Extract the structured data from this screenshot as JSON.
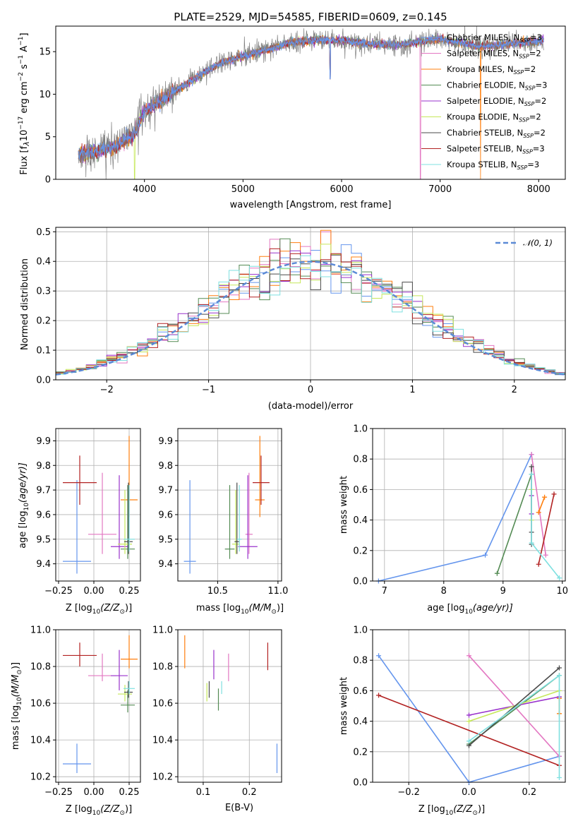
{
  "page": {
    "title": "PLATE=2529, MJD=54585, FIBERID=0609, z=0.145"
  },
  "models": [
    {
      "label": "Chabrier MILES, N_SSP=3",
      "base": "Chabrier MILES, N",
      "sub": "SSP",
      "tail": "=3",
      "color": "#6495ed",
      "weight": 0.8
    },
    {
      "label": "Salpeter MILES, N_SSP=2",
      "base": "Salpeter MILES, N",
      "sub": "SSP",
      "tail": "=2",
      "color": "#e377c2",
      "weight": 0.8
    },
    {
      "label": "Kroupa MILES, N_SSP=2",
      "base": "Kroupa MILES, N",
      "sub": "SSP",
      "tail": "=2",
      "color": "#ff7f0e",
      "weight": 0.8
    },
    {
      "label": "Chabrier ELODIE, N_SSP=3",
      "base": "Chabrier ELODIE, N",
      "sub": "SSP",
      "tail": "=3",
      "color": "#548b54",
      "weight": 0.8
    },
    {
      "label": "Salpeter ELODIE, N_SSP=2",
      "base": "Salpeter ELODIE, N",
      "sub": "SSP",
      "tail": "=2",
      "color": "#9932cc",
      "weight": 0.8
    },
    {
      "label": "Kroupa ELODIE, N_SSP=2",
      "base": "Kroupa ELODIE, N",
      "sub": "SSP",
      "tail": "=2",
      "color": "#c6e85a",
      "weight": 0.8
    },
    {
      "label": "Chabrier STELIB, N_SSP=2",
      "base": "Chabrier STELIB, N",
      "sub": "SSP",
      "tail": "=2",
      "color": "#4a4a4a",
      "weight": 0.8
    },
    {
      "label": "Salpeter STELIB, N_SSP=3",
      "base": "Salpeter STELIB, N",
      "sub": "SSP",
      "tail": "=3",
      "color": "#b22222",
      "weight": 0.8
    },
    {
      "label": "Kroupa STELIB, N_SSP=3",
      "base": "Kroupa STELIB, N",
      "sub": "SSP",
      "tail": "=3",
      "color": "#7fe0e0",
      "weight": 0.8
    }
  ],
  "chart_data": [
    {
      "id": "spectrum",
      "type": "line",
      "xlabel": "wavelength [Angstrom, rest frame]",
      "ylabel": "Flux [f_λ10^-17 erg cm^-2 s^-1 A^-1]",
      "xlim": [
        3100,
        8270
      ],
      "ylim": [
        0,
        18
      ],
      "xticks": [
        4000,
        5000,
        6000,
        7000,
        8000
      ],
      "yticks": [
        0,
        5,
        10,
        15
      ],
      "grid": false,
      "legend_position": "right",
      "data_range_x": [
        3330,
        8050
      ],
      "continuum_points": [
        [
          3330,
          3.0
        ],
        [
          3500,
          3.2
        ],
        [
          3700,
          3.8
        ],
        [
          3900,
          5.3
        ],
        [
          4000,
          8.0
        ],
        [
          4200,
          9.5
        ],
        [
          4400,
          11.0
        ],
        [
          4600,
          12.5
        ],
        [
          4800,
          13.8
        ],
        [
          5000,
          14.5
        ],
        [
          5200,
          15.1
        ],
        [
          5500,
          16.1
        ],
        [
          5800,
          16.4
        ],
        [
          6000,
          16.3
        ],
        [
          6300,
          15.9
        ],
        [
          6600,
          15.8
        ],
        [
          7000,
          16.5
        ],
        [
          7400,
          15.6
        ],
        [
          8050,
          16.3
        ]
      ],
      "features": [
        {
          "x": 6800,
          "depth_to": 0,
          "series": "Salpeter MILES"
        },
        {
          "x": 7410,
          "depth_to": 0,
          "series": "Kroupa MILES"
        },
        {
          "x": 3900,
          "depth_to": 0,
          "series": "Kroupa ELODIE"
        },
        {
          "x": 3610,
          "depth_to": 0,
          "series": "Chabrier STELIB"
        },
        {
          "x": 5885,
          "depth_to": 11.8,
          "series": "all"
        }
      ]
    },
    {
      "id": "residuals",
      "type": "histogram",
      "xlabel": "(data-model)/error",
      "ylabel": "Normed distribution",
      "xlim": [
        -2.5,
        2.5
      ],
      "ylim": [
        0,
        0.515
      ],
      "xticks": [
        -2,
        -1,
        0,
        1,
        2
      ],
      "yticks": [
        0.0,
        0.1,
        0.2,
        0.3,
        0.4,
        0.5
      ],
      "grid": true,
      "legend": [
        {
          "name": "𝒩(0, 1)",
          "color": "#6495ed",
          "style": "dashed"
        }
      ],
      "legend_position": "top-right",
      "bin_width": 0.1,
      "reference_curve": "gaussian(mu=0, sigma=1)"
    },
    {
      "id": "age-vs-Z",
      "type": "errorbar",
      "xlabel": "Z [log10(Z/Z⊙)]",
      "ylabel": "age [log10(age/yr)]",
      "xlim": [
        -0.27,
        0.33
      ],
      "ylim": [
        9.33,
        9.95
      ],
      "xticks": [
        -0.25,
        0.0,
        0.25
      ],
      "yticks": [
        9.4,
        9.5,
        9.6,
        9.7,
        9.8,
        9.9
      ],
      "grid": true,
      "points": [
        {
          "series": "Chabrier MILES",
          "x": -0.12,
          "y": 9.41,
          "xerr": [
            0.1,
            0.1
          ],
          "yerr": [
            0.05,
            0.33
          ]
        },
        {
          "series": "Salpeter MILES",
          "x": 0.06,
          "y": 9.52,
          "xerr": [
            0.1,
            0.1
          ],
          "yerr": [
            0.08,
            0.25
          ]
        },
        {
          "series": "Kroupa MILES",
          "x": 0.25,
          "y": 9.66,
          "xerr": [
            0.06,
            0.06
          ],
          "yerr": [
            0.07,
            0.26
          ]
        },
        {
          "series": "Chabrier ELODIE",
          "x": 0.24,
          "y": 9.46,
          "xerr": [
            0.05,
            0.05
          ],
          "yerr": [
            0.04,
            0.26
          ]
        },
        {
          "series": "Salpeter ELODIE",
          "x": 0.18,
          "y": 9.47,
          "xerr": [
            0.06,
            0.06
          ],
          "yerr": [
            0.05,
            0.29
          ]
        },
        {
          "series": "Kroupa ELODIE",
          "x": 0.22,
          "y": 9.48,
          "xerr": [
            0.05,
            0.05
          ],
          "yerr": [
            0.04,
            0.22
          ]
        },
        {
          "series": "Chabrier STELIB",
          "x": 0.245,
          "y": 9.49,
          "xerr": [
            0.03,
            0.03
          ],
          "yerr": [
            0.05,
            0.24
          ]
        },
        {
          "series": "Salpeter STELIB",
          "x": -0.1,
          "y": 9.73,
          "xerr": [
            0.12,
            0.12
          ],
          "yerr": [
            0.09,
            0.11
          ]
        },
        {
          "series": "Kroupa STELIB",
          "x": 0.25,
          "y": 9.5,
          "xerr": [
            0.04,
            0.04
          ],
          "yerr": [
            0.05,
            0.22
          ]
        }
      ]
    },
    {
      "id": "age-vs-mass",
      "type": "errorbar",
      "xlabel": "mass [log10(M/M⊙)]",
      "ylabel": "",
      "xlim": [
        10.17,
        11.03
      ],
      "ylim": [
        9.33,
        9.95
      ],
      "xticks": [
        10.5,
        11.0
      ],
      "yticks": [
        9.4,
        9.5,
        9.6,
        9.7,
        9.8,
        9.9
      ],
      "grid": true,
      "points": [
        {
          "series": "Chabrier MILES",
          "x": 10.27,
          "y": 9.41,
          "xerr": [
            0.05,
            0.05
          ],
          "yerr": [
            0.05,
            0.33
          ]
        },
        {
          "series": "Salpeter MILES",
          "x": 10.76,
          "y": 9.52,
          "xerr": [
            0.03,
            0.03
          ],
          "yerr": [
            0.08,
            0.25
          ]
        },
        {
          "series": "Kroupa MILES",
          "x": 10.85,
          "y": 9.66,
          "xerr": [
            0.04,
            0.04
          ],
          "yerr": [
            0.07,
            0.26
          ]
        },
        {
          "series": "Chabrier ELODIE",
          "x": 10.6,
          "y": 9.46,
          "xerr": [
            0.04,
            0.04
          ],
          "yerr": [
            0.04,
            0.26
          ]
        },
        {
          "series": "Salpeter ELODIE",
          "x": 10.75,
          "y": 9.47,
          "xerr": [
            0.08,
            0.08
          ],
          "yerr": [
            0.05,
            0.29
          ]
        },
        {
          "series": "Kroupa ELODIE",
          "x": 10.65,
          "y": 9.48,
          "xerr": [
            0.03,
            0.03
          ],
          "yerr": [
            0.04,
            0.22
          ]
        },
        {
          "series": "Chabrier STELIB",
          "x": 10.66,
          "y": 9.49,
          "xerr": [
            0.02,
            0.02
          ],
          "yerr": [
            0.05,
            0.24
          ]
        },
        {
          "series": "Salpeter STELIB",
          "x": 10.86,
          "y": 9.73,
          "xerr": [
            0.07,
            0.07
          ],
          "yerr": [
            0.09,
            0.11
          ]
        },
        {
          "series": "Kroupa STELIB",
          "x": 10.68,
          "y": 9.5,
          "xerr": [
            0.02,
            0.02
          ],
          "yerr": [
            0.05,
            0.22
          ]
        }
      ]
    },
    {
      "id": "weight-vs-age",
      "type": "line",
      "xlabel": "age [log10(age/yr)]",
      "ylabel": "mass weight",
      "xlim": [
        6.8,
        10.05
      ],
      "ylim": [
        0,
        1.0
      ],
      "xticks": [
        7,
        8,
        9,
        10
      ],
      "yticks": [
        0.0,
        0.2,
        0.4,
        0.6,
        0.8,
        1.0
      ],
      "grid": true,
      "series": [
        {
          "name": "Chabrier MILES",
          "x": [
            6.9,
            8.7,
            9.48
          ],
          "y": [
            0.0,
            0.17,
            0.83
          ]
        },
        {
          "name": "Salpeter MILES",
          "x": [
            9.48,
            9.72
          ],
          "y": [
            0.83,
            0.17
          ]
        },
        {
          "name": "Kroupa MILES",
          "x": [
            9.6,
            9.7
          ],
          "y": [
            0.45,
            0.55
          ]
        },
        {
          "name": "Chabrier ELODIE",
          "x": [
            8.9,
            9.48
          ],
          "y": [
            0.05,
            0.7
          ]
        },
        {
          "name": "Salpeter ELODIE",
          "x": [
            9.48,
            9.48
          ],
          "y": [
            0.44,
            0.56
          ]
        },
        {
          "name": "Kroupa ELODIE",
          "x": [
            9.48,
            9.48
          ],
          "y": [
            0.4,
            0.6
          ]
        },
        {
          "name": "Chabrier STELIB",
          "x": [
            9.48,
            9.48,
            9.48
          ],
          "y": [
            0.24,
            0.32,
            0.75
          ]
        },
        {
          "name": "Salpeter STELIB",
          "x": [
            9.6,
            9.86
          ],
          "y": [
            0.11,
            0.57
          ]
        },
        {
          "name": "Kroupa STELIB",
          "x": [
            9.48,
            9.48,
            9.95
          ],
          "y": [
            0.7,
            0.25,
            0.02
          ]
        }
      ]
    },
    {
      "id": "mass-vs-Z",
      "type": "errorbar",
      "xlabel": "Z [log10(Z/Z⊙)]",
      "ylabel": "mass [log10(M/M⊙)]",
      "xlim": [
        -0.27,
        0.33
      ],
      "ylim": [
        10.17,
        11.0
      ],
      "xticks": [
        -0.25,
        0.0,
        0.25
      ],
      "yticks": [
        10.2,
        10.4,
        10.6,
        10.8,
        11.0
      ],
      "grid": true,
      "points": [
        {
          "series": "Chabrier MILES",
          "x": -0.12,
          "y": 10.27,
          "xerr": [
            0.1,
            0.1
          ],
          "yerr": [
            0.05,
            0.11
          ]
        },
        {
          "series": "Salpeter MILES",
          "x": 0.06,
          "y": 10.75,
          "xerr": [
            0.1,
            0.1
          ],
          "yerr": [
            0.03,
            0.12
          ]
        },
        {
          "series": "Kroupa MILES",
          "x": 0.25,
          "y": 10.84,
          "xerr": [
            0.06,
            0.06
          ],
          "yerr": [
            0.05,
            0.13
          ]
        },
        {
          "series": "Chabrier ELODIE",
          "x": 0.24,
          "y": 10.59,
          "xerr": [
            0.05,
            0.05
          ],
          "yerr": [
            0.04,
            0.08
          ]
        },
        {
          "series": "Salpeter ELODIE",
          "x": 0.18,
          "y": 10.75,
          "xerr": [
            0.06,
            0.06
          ],
          "yerr": [
            0.08,
            0.14
          ]
        },
        {
          "series": "Kroupa ELODIE",
          "x": 0.22,
          "y": 10.65,
          "xerr": [
            0.05,
            0.05
          ],
          "yerr": [
            0.04,
            0.05
          ]
        },
        {
          "series": "Chabrier STELIB",
          "x": 0.245,
          "y": 10.66,
          "xerr": [
            0.03,
            0.03
          ],
          "yerr": [
            0.03,
            0.06
          ]
        },
        {
          "series": "Salpeter STELIB",
          "x": -0.1,
          "y": 10.86,
          "xerr": [
            0.12,
            0.12
          ],
          "yerr": [
            0.06,
            0.07
          ]
        },
        {
          "series": "Kroupa STELIB",
          "x": 0.25,
          "y": 10.68,
          "xerr": [
            0.04,
            0.04
          ],
          "yerr": [
            0.03,
            0.04
          ]
        }
      ]
    },
    {
      "id": "mass-vs-ebv",
      "type": "errorbar",
      "xlabel": "E(B-V)",
      "ylabel": "",
      "xlim": [
        0.045,
        0.27
      ],
      "ylim": [
        10.17,
        11.0
      ],
      "xticks": [
        0.1,
        0.2
      ],
      "yticks": [
        10.2,
        10.4,
        10.6,
        10.8,
        11.0
      ],
      "grid": true,
      "points": [
        {
          "series": "Chabrier MILES",
          "x": 0.26,
          "y": 10.27,
          "xerr": [
            0,
            0
          ],
          "yerr": [
            0.05,
            0.11
          ]
        },
        {
          "series": "Salpeter MILES",
          "x": 0.155,
          "y": 10.77,
          "xerr": [
            0,
            0
          ],
          "yerr": [
            0.05,
            0.1
          ]
        },
        {
          "series": "Kroupa MILES",
          "x": 0.06,
          "y": 10.85,
          "xerr": [
            0,
            0
          ],
          "yerr": [
            0.06,
            0.12
          ]
        },
        {
          "series": "Chabrier ELODIE",
          "x": 0.133,
          "y": 10.6,
          "xerr": [
            0,
            0
          ],
          "yerr": [
            0.04,
            0.08
          ]
        },
        {
          "series": "Salpeter ELODIE",
          "x": 0.123,
          "y": 10.8,
          "xerr": [
            0,
            0
          ],
          "yerr": [
            0.07,
            0.09
          ]
        },
        {
          "series": "Kroupa ELODIE",
          "x": 0.108,
          "y": 10.65,
          "xerr": [
            0,
            0
          ],
          "yerr": [
            0.04,
            0.06
          ]
        },
        {
          "series": "Chabrier STELIB",
          "x": 0.113,
          "y": 10.66,
          "xerr": [
            0,
            0
          ],
          "yerr": [
            0.03,
            0.06
          ]
        },
        {
          "series": "Salpeter STELIB",
          "x": 0.24,
          "y": 10.85,
          "xerr": [
            0,
            0
          ],
          "yerr": [
            0.07,
            0.08
          ]
        },
        {
          "series": "Kroupa STELIB",
          "x": 0.14,
          "y": 10.68,
          "xerr": [
            0,
            0
          ],
          "yerr": [
            0.03,
            0.04
          ]
        }
      ]
    },
    {
      "id": "weight-vs-Z",
      "type": "line",
      "xlabel": "Z [log10(Z/Z⊙)]",
      "ylabel": "mass weight",
      "xlim": [
        -0.32,
        0.32
      ],
      "ylim": [
        0,
        1.0
      ],
      "xticks": [
        -0.2,
        0.0,
        0.2
      ],
      "yticks": [
        0.0,
        0.2,
        0.4,
        0.6,
        0.8,
        1.0
      ],
      "grid": true,
      "series": [
        {
          "name": "Chabrier MILES",
          "x": [
            -0.3,
            0.0,
            0.3
          ],
          "y": [
            0.83,
            0.0,
            0.17
          ]
        },
        {
          "name": "Salpeter MILES",
          "x": [
            0.0,
            0.3
          ],
          "y": [
            0.83,
            0.17
          ]
        },
        {
          "name": "Kroupa MILES",
          "x": [
            0.3,
            0.3
          ],
          "y": [
            0.45,
            0.55
          ]
        },
        {
          "name": "Chabrier ELODIE",
          "x": [
            0.0,
            0.3
          ],
          "y": [
            0.25,
            0.7
          ]
        },
        {
          "name": "Salpeter ELODIE",
          "x": [
            0.0,
            0.3
          ],
          "y": [
            0.44,
            0.56
          ]
        },
        {
          "name": "Kroupa ELODIE",
          "x": [
            0.0,
            0.3
          ],
          "y": [
            0.4,
            0.6
          ]
        },
        {
          "name": "Chabrier STELIB",
          "x": [
            0.0,
            0.3
          ],
          "y": [
            0.24,
            0.75
          ]
        },
        {
          "name": "Salpeter STELIB",
          "x": [
            -0.3,
            0.3
          ],
          "y": [
            0.57,
            0.11
          ]
        },
        {
          "name": "Kroupa STELIB",
          "x": [
            0.0,
            0.3,
            0.3
          ],
          "y": [
            0.27,
            0.7,
            0.03
          ]
        }
      ]
    }
  ],
  "labels": {
    "spectrum_xlabel": "wavelength [Angstrom, rest frame]",
    "residual_xlabel": "(data-model)/error",
    "residual_ylabel": "Normed distribution",
    "normal_legend": "𝒩(0, 1)",
    "age_ylabel_a": "age  [log",
    "age_ylabel_sub": "10",
    "age_ylabel_b": "(age/yr)]",
    "z_xlabel_a": "Z [log",
    "z_xlabel_sub": "10",
    "z_xlabel_b": "(Z/Z",
    "z_xlabel_c": ")]",
    "mass_xlabel_a": "mass [log",
    "mass_xlabel_sub": "10",
    "mass_xlabel_b": "(M/M",
    "mass_xlabel_c": ")]",
    "agew_xlabel_a": "age  [log",
    "agew_xlabel_sub": "10",
    "agew_xlabel_b": "(age/yr)]",
    "weight_ylabel": "mass weight",
    "ebv_xlabel": "E(B-V)",
    "flux_ylabel_a": "Flux [f",
    "flux_ylabel_b": "10",
    "flux_ylabel_c": " erg cm",
    "flux_ylabel_d": " s",
    "flux_ylabel_e": " A",
    "flux_ylabel_f": "]"
  }
}
